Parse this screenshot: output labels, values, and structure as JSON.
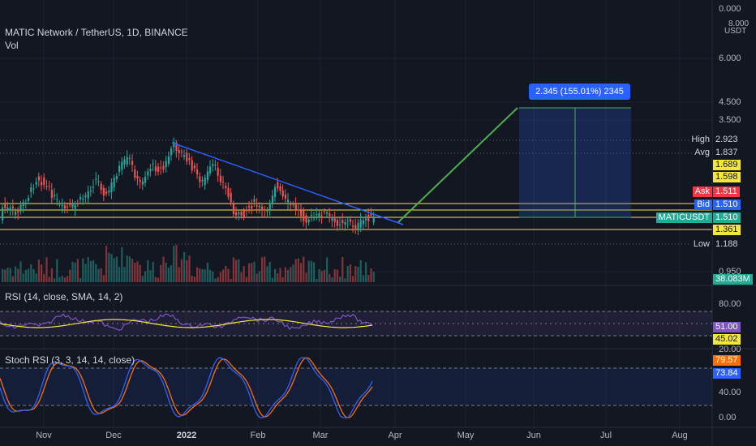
{
  "legend": {
    "symbol_line": "MATIC Network / TetherUS, 1D, BINANCE",
    "volume": "Vol",
    "rsi": "RSI (14, close, SMA, 14, 2)",
    "stoch_rsi": "Stoch RSI (3, 3, 14, 14, close)"
  },
  "price_axis": {
    "currency": "USDT",
    "ticks": [
      "0.000",
      "8.000",
      "6.000",
      "4.500",
      "3.500",
      "0.950"
    ]
  },
  "price_tags": [
    {
      "label": "High",
      "value": "2.923",
      "color": "#131722",
      "text_color": "#d1d4dc"
    },
    {
      "label": "Avg",
      "value": "1.837",
      "color": "#131722",
      "text_color": "#d1d4dc"
    },
    {
      "label": "",
      "value": "1.689",
      "color": "#f5e63c",
      "text_color": "#131722"
    },
    {
      "label": "",
      "value": "1.598",
      "color": "#f5e63c",
      "text_color": "#131722"
    },
    {
      "label": "Ask",
      "value": "1.511",
      "color": "#f23645",
      "text_color": "#ffffff"
    },
    {
      "label": "Bid",
      "value": "1.510",
      "color": "#2962ff",
      "text_color": "#ffffff"
    },
    {
      "label": "MATICUSDT",
      "value": "1.510",
      "color": "#22ab94",
      "text_color": "#ffffff"
    },
    {
      "label": "",
      "value": "1.361",
      "color": "#f5e63c",
      "text_color": "#131722"
    },
    {
      "label": "Low",
      "value": "1.188",
      "color": "#131722",
      "text_color": "#d1d4dc"
    }
  ],
  "volume_tag": "38.083M",
  "measure": {
    "text": "2.345 (155.01%) 2345"
  },
  "rsi_axis": {
    "ticks": [
      "80.00",
      "20.00"
    ],
    "value_a": "51.00",
    "value_b": "45.02"
  },
  "stoch_axis": {
    "ticks": [
      "40.00",
      "0.00"
    ],
    "value_a": "79.57",
    "value_b": "73.84"
  },
  "time_axis": [
    "Nov",
    "Dec",
    "2022",
    "Feb",
    "Mar",
    "Apr",
    "May",
    "Jun",
    "Jul",
    "Aug"
  ],
  "colors": {
    "bg": "#131722",
    "up": "#26a69a",
    "down": "#ef5350",
    "trendline": "#2962ff",
    "projection": "#4caf50",
    "level": "#f5e63c",
    "rsi": "#7e57c2",
    "rsi_ma": "#f5e63c",
    "stoch_k": "#2962ff",
    "stoch_d": "#ff6d00"
  }
}
